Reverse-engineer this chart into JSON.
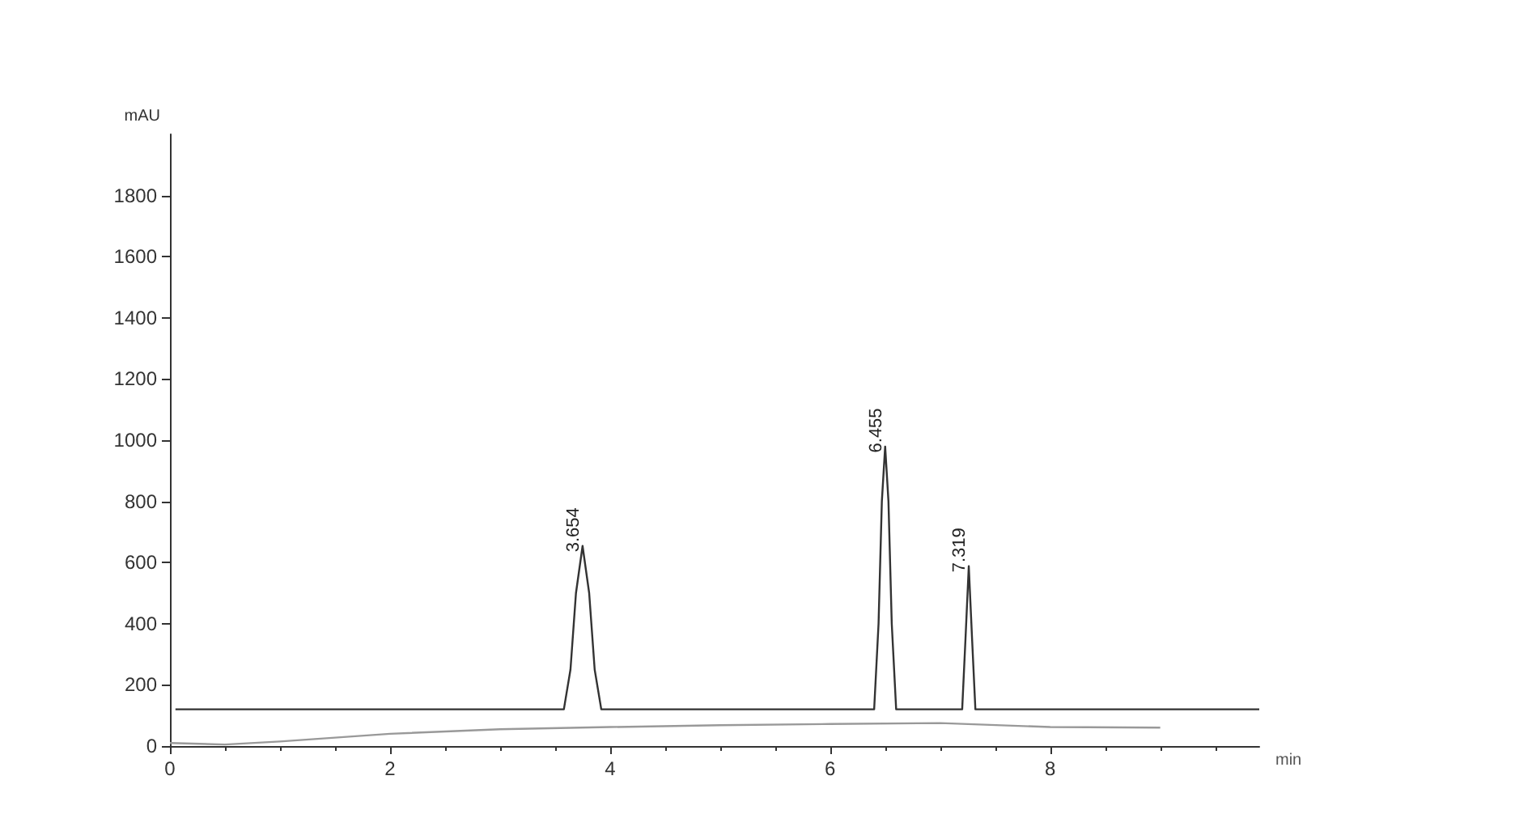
{
  "chart_data": {
    "type": "line",
    "xlabel": "min",
    "ylabel": "mAU",
    "xlim": [
      0,
      9.9
    ],
    "ylim": [
      0,
      2000
    ],
    "xticks": [
      0,
      2,
      4,
      6,
      8
    ],
    "yticks": [
      0,
      200,
      400,
      600,
      800,
      1000,
      1200,
      1400,
      1600,
      1800
    ],
    "grid": false,
    "marker": "none",
    "line_style": "solid",
    "series": [
      {
        "color": "#333333",
        "x": [
          0.05,
          3.58,
          3.64,
          3.69,
          3.75,
          3.81,
          3.86,
          3.92,
          6.4,
          6.44,
          6.47,
          6.5,
          6.53,
          6.56,
          6.6,
          7.2,
          7.23,
          7.26,
          7.29,
          7.32,
          9.9
        ],
        "values": [
          120,
          120,
          250,
          500,
          654,
          500,
          250,
          120,
          120,
          400,
          800,
          979,
          800,
          400,
          120,
          120,
          350,
          588,
          350,
          120,
          120
        ]
      },
      {
        "color": "#999999",
        "x": [
          0,
          0.5,
          1,
          2,
          3,
          4,
          5,
          6,
          7,
          8,
          9
        ],
        "values": [
          10,
          5,
          15,
          40,
          55,
          62,
          68,
          72,
          75,
          62,
          60
        ]
      }
    ],
    "annotations": [
      {
        "text": "3.654",
        "x": 3.75,
        "y": 654
      },
      {
        "text": "6.455",
        "x": 6.5,
        "y": 979
      },
      {
        "text": "7.319",
        "x": 7.26,
        "y": 588
      }
    ]
  }
}
